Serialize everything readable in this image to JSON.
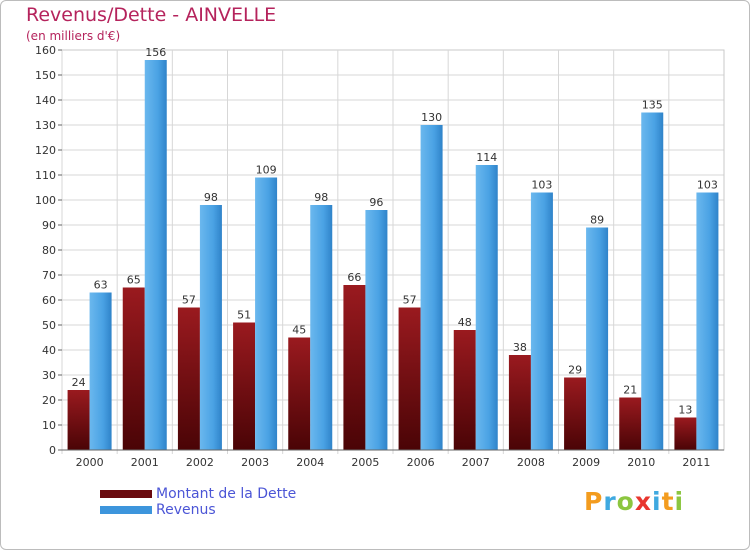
{
  "title": "Revenus/Dette - AINVELLE",
  "subtitle": "(en milliers d'€)",
  "logo": {
    "letters": [
      "P",
      "r",
      "o",
      "x",
      "i",
      "t",
      "i"
    ],
    "colors": [
      "#f39c1f",
      "#3fa9e0",
      "#8cc63f",
      "#e8362e",
      "#3fa9e0",
      "#f39c1f",
      "#8cc63f"
    ]
  },
  "chart_data": {
    "type": "bar",
    "title": "Revenus/Dette - AINVELLE",
    "ylabel": "(en milliers d'€)",
    "ylim": [
      0,
      160
    ],
    "yticks": [
      0,
      10,
      20,
      30,
      40,
      50,
      60,
      70,
      80,
      90,
      100,
      110,
      120,
      130,
      140,
      150,
      160
    ],
    "grid": true,
    "legend_position": "bottom-left",
    "categories": [
      "2000",
      "2001",
      "2002",
      "2003",
      "2004",
      "2005",
      "2006",
      "2007",
      "2008",
      "2009",
      "2010",
      "2011"
    ],
    "series": [
      {
        "name": "Montant de la Dette",
        "color": "#7a0d12",
        "values": [
          24,
          65,
          57,
          51,
          45,
          66,
          57,
          48,
          38,
          29,
          21,
          13
        ]
      },
      {
        "name": "Revenus",
        "color": "#3d95dc",
        "values": [
          63,
          156,
          98,
          109,
          98,
          96,
          130,
          114,
          103,
          89,
          135,
          103
        ]
      }
    ]
  }
}
